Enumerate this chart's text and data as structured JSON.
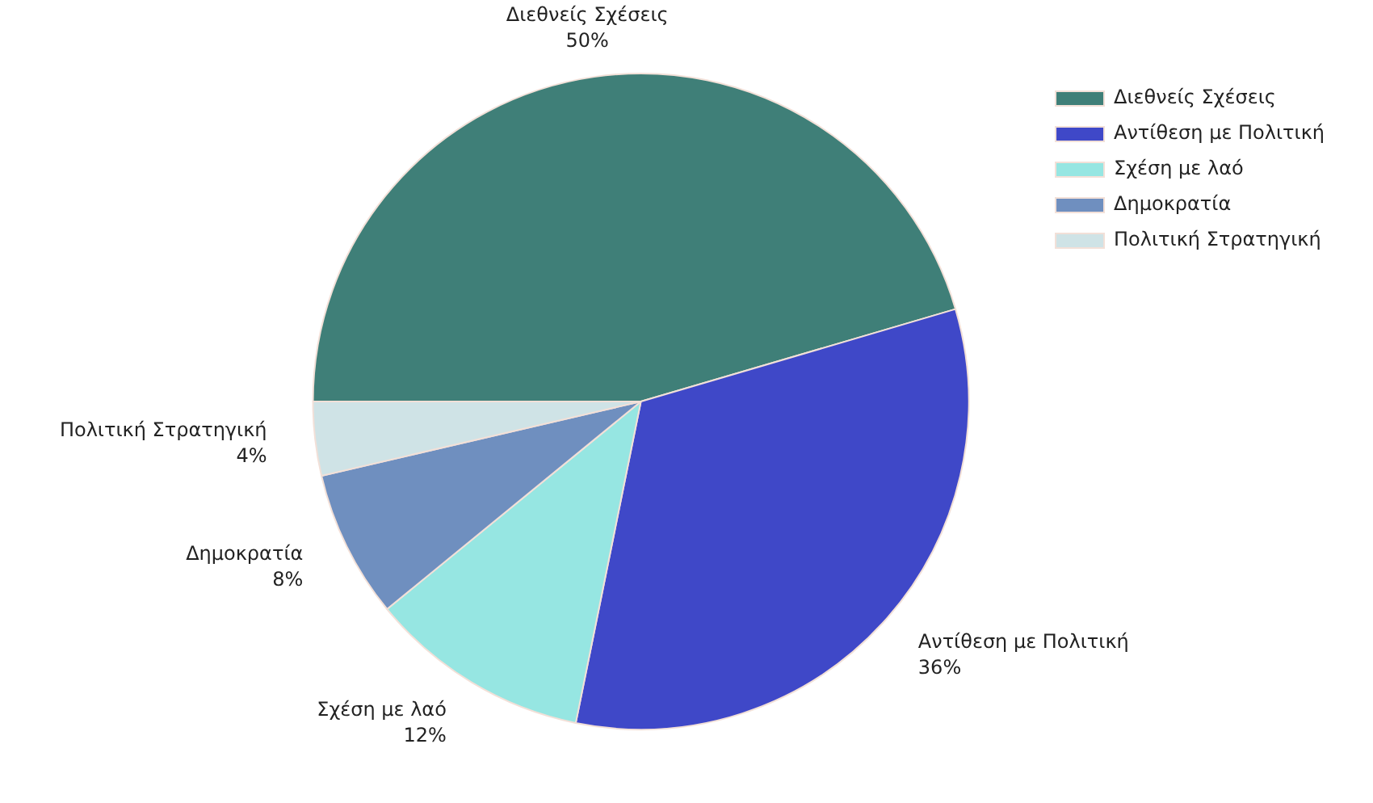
{
  "chart_data": {
    "type": "pie",
    "categories": [
      "Διεθνείς Σχέσεις",
      "Αντίθεση με Πολιτική",
      "Σχέση με λαό",
      "Δημοκρατία",
      "Πολιτική Στρατηγική"
    ],
    "values": [
      50,
      36,
      12,
      8,
      4
    ],
    "value_labels": [
      "50%",
      "36%",
      "12%",
      "8%",
      "4%"
    ],
    "colors": [
      "#3f7f78",
      "#3f48c8",
      "#96e6e2",
      "#6f8fbf",
      "#cfe3e6"
    ],
    "legend": "top right"
  }
}
